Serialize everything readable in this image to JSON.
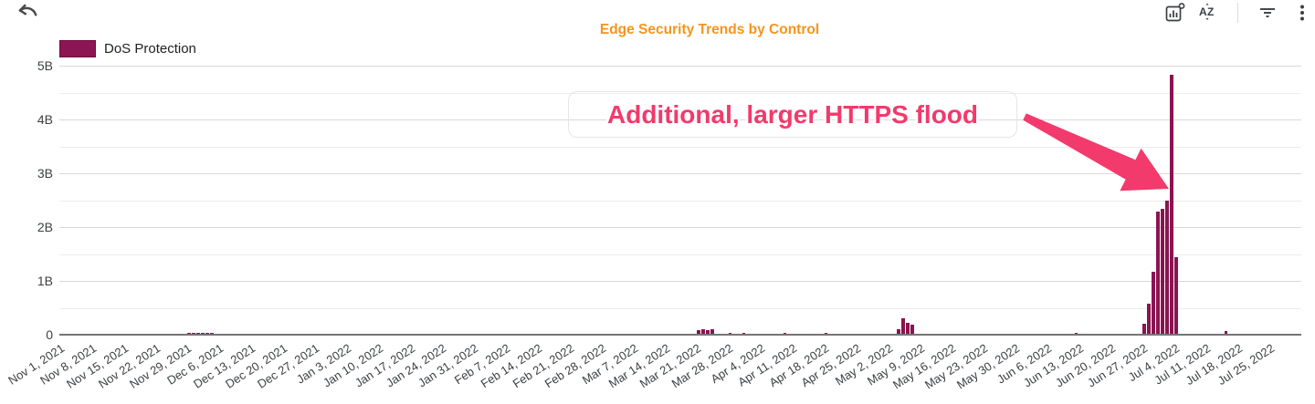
{
  "header": {
    "title": "Edge Security Trends by Control",
    "title_color": "#F5941E",
    "icons": [
      {
        "name": "undo-icon"
      },
      {
        "name": "chart-settings-icon"
      },
      {
        "name": "sort-az-icon"
      },
      {
        "name": "filter-icon"
      },
      {
        "name": "kebab-menu-icon"
      }
    ]
  },
  "legend": {
    "label": "DoS Protection",
    "swatch_color": "#8C1553"
  },
  "annotation": {
    "text": "Additional, larger HTTPS flood",
    "color": "#F23A6C"
  },
  "chart_data": {
    "type": "bar",
    "title": "Edge Security Trends by Control",
    "series_name": "DoS Protection",
    "bar_color": "#8A1451",
    "granularity": "daily",
    "x_start_date": "Nov 1, 2021",
    "x_end_date": "Jul 31, 2022",
    "ylim_billions": [
      0,
      5
    ],
    "grid": true,
    "legend_position": "top-left",
    "y_ticks": [
      {
        "value": 0,
        "label": "0"
      },
      {
        "value": 1,
        "label": "1B"
      },
      {
        "value": 2,
        "label": "2B"
      },
      {
        "value": 3,
        "label": "3B"
      },
      {
        "value": 4,
        "label": "4B"
      },
      {
        "value": 5,
        "label": "5B"
      }
    ],
    "x_tick_labels": [
      "Nov 1, 2021",
      "Nov 8, 2021",
      "Nov 15, 2021",
      "Nov 22, 2021",
      "Nov 29, 2021",
      "Dec 6, 2021",
      "Dec 13, 2021",
      "Dec 20, 2021",
      "Dec 27, 2021",
      "Jan 3, 2022",
      "Jan 10, 2022",
      "Jan 17, 2022",
      "Jan 24, 2022",
      "Jan 31, 2022",
      "Feb 7, 2022",
      "Feb 14, 2022",
      "Feb 21, 2022",
      "Feb 28, 2022",
      "Mar 7, 2022",
      "Mar 14, 2022",
      "Mar 21, 2022",
      "Mar 28, 2022",
      "Apr 4, 2022",
      "Apr 11, 2022",
      "Apr 18, 2022",
      "Apr 25, 2022",
      "May 2, 2022",
      "May 9, 2022",
      "May 16, 2022",
      "May 23, 2022",
      "May 30, 2022",
      "Jun 6, 2022",
      "Jun 13, 2022",
      "Jun 20, 2022",
      "Jun 27, 2022",
      "Jul 4, 2022",
      "Jul 11, 2022",
      "Jul 18, 2022",
      "Jul 25, 2022"
    ],
    "points": [
      {
        "date": "Nov 29, 2021",
        "value_billions": 0.01
      },
      {
        "date": "Nov 30, 2021",
        "value_billions": 0.02
      },
      {
        "date": "Dec 1, 2021",
        "value_billions": 0.025
      },
      {
        "date": "Dec 2, 2021",
        "value_billions": 0.02
      },
      {
        "date": "Dec 3, 2021",
        "value_billions": 0.015
      },
      {
        "date": "Dec 4, 2021",
        "value_billions": 0.01
      },
      {
        "date": "Mar 21, 2022",
        "value_billions": 0.06
      },
      {
        "date": "Mar 22, 2022",
        "value_billions": 0.09
      },
      {
        "date": "Mar 23, 2022",
        "value_billions": 0.07
      },
      {
        "date": "Mar 24, 2022",
        "value_billions": 0.08
      },
      {
        "date": "Mar 28, 2022",
        "value_billions": 0.015
      },
      {
        "date": "Mar 31, 2022",
        "value_billions": 0.01
      },
      {
        "date": "Apr 9, 2022",
        "value_billions": 0.01
      },
      {
        "date": "Apr 18, 2022",
        "value_billions": 0.01
      },
      {
        "date": "May 4, 2022",
        "value_billions": 0.09
      },
      {
        "date": "May 5, 2022",
        "value_billions": 0.28
      },
      {
        "date": "May 6, 2022",
        "value_billions": 0.2
      },
      {
        "date": "May 7, 2022",
        "value_billions": 0.175
      },
      {
        "date": "Jun 12, 2022",
        "value_billions": 0.01
      },
      {
        "date": "Jun 27, 2022",
        "value_billions": 0.19
      },
      {
        "date": "Jun 28, 2022",
        "value_billions": 0.56
      },
      {
        "date": "Jun 29, 2022",
        "value_billions": 1.16
      },
      {
        "date": "Jun 30, 2022",
        "value_billions": 2.27
      },
      {
        "date": "Jul 1, 2022",
        "value_billions": 2.33
      },
      {
        "date": "Jul 2, 2022",
        "value_billions": 2.47
      },
      {
        "date": "Jul 3, 2022",
        "value_billions": 4.81
      },
      {
        "date": "Jul 4, 2022",
        "value_billions": 1.43
      },
      {
        "date": "Jul 15, 2022",
        "value_billions": 0.05
      }
    ]
  }
}
